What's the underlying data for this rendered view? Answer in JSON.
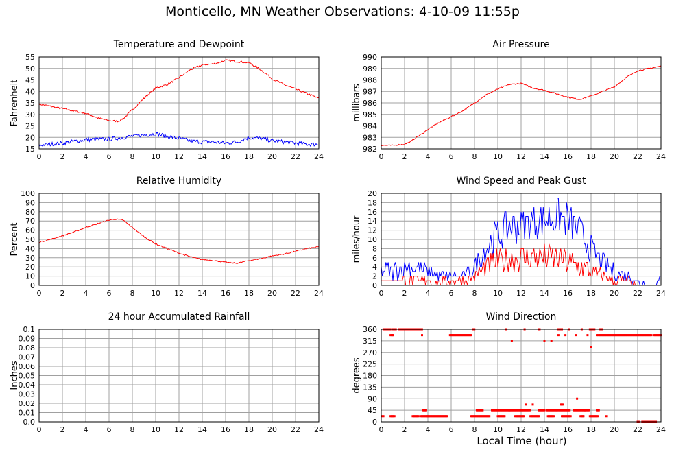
{
  "page": {
    "title": "Monticello, MN Weather Observations: 4-10-09 11:55p",
    "x_axis_label": "Local Time (hour)"
  },
  "colors": {
    "red": "#ff0000",
    "blue": "#0000ff",
    "grid": "#a0a0a0",
    "frame": "#000000"
  },
  "chart_data": [
    {
      "id": "temperature",
      "type": "line",
      "title": "Temperature and Dewpoint",
      "xlabel": "",
      "ylabel": "Fahrenheit",
      "xlim": [
        0,
        24
      ],
      "ylim": [
        15,
        55
      ],
      "xticks": [
        "0",
        "2",
        "4",
        "6",
        "8",
        "10",
        "12",
        "14",
        "16",
        "18",
        "20",
        "22",
        "24"
      ],
      "yticks": [
        "15",
        "20",
        "25",
        "30",
        "35",
        "40",
        "45",
        "50",
        "55"
      ],
      "grid": true,
      "series": [
        {
          "color": "red",
          "noise": 0.4,
          "x": [
            0,
            2,
            4,
            5,
            6,
            6.8,
            7.3,
            8,
            9,
            10,
            11,
            12,
            13,
            14,
            15,
            16,
            17,
            18,
            19,
            20,
            21,
            22,
            23,
            24
          ],
          "y": [
            34.5,
            32.5,
            30.5,
            28.5,
            27.3,
            27,
            28.5,
            32,
            37,
            41.5,
            43,
            46,
            49.5,
            51.5,
            52,
            53.5,
            53,
            52.5,
            49.5,
            45.5,
            43,
            41,
            39,
            37
          ]
        },
        {
          "color": "blue",
          "noise": 0.9,
          "x": [
            0,
            2,
            4,
            6,
            8,
            9,
            10,
            11,
            12,
            13,
            14,
            15,
            16,
            17,
            18,
            19,
            20,
            21,
            22,
            23,
            24
          ],
          "y": [
            16.5,
            17.5,
            19,
            19.2,
            20.5,
            21,
            21.5,
            20.5,
            19.5,
            18.5,
            18,
            18,
            17.5,
            18,
            20,
            19.5,
            18.5,
            18,
            17.5,
            17,
            17
          ]
        }
      ]
    },
    {
      "id": "pressure",
      "type": "line",
      "title": "Air Pressure",
      "xlabel": "",
      "ylabel": "millibars",
      "xlim": [
        0,
        24
      ],
      "ylim": [
        982,
        990
      ],
      "xticks": [
        "0",
        "2",
        "4",
        "6",
        "8",
        "10",
        "12",
        "14",
        "16",
        "18",
        "20",
        "22",
        "24"
      ],
      "yticks": [
        "982",
        "983",
        "984",
        "985",
        "986",
        "987",
        "988",
        "989",
        "990"
      ],
      "grid": true,
      "series": [
        {
          "color": "red",
          "noise": 0.05,
          "x": [
            0,
            1,
            2,
            2.5,
            3,
            3.5,
            4,
            5,
            6,
            7,
            8,
            9,
            10,
            11,
            12,
            13,
            14,
            15,
            16,
            17,
            18,
            19,
            20,
            21,
            22,
            23,
            24
          ],
          "y": [
            982.3,
            982.3,
            982.4,
            982.6,
            983.0,
            983.3,
            983.7,
            984.3,
            984.8,
            985.3,
            986.0,
            986.7,
            987.2,
            987.6,
            987.7,
            987.3,
            987.1,
            986.8,
            986.5,
            986.3,
            986.6,
            987.0,
            987.4,
            988.2,
            988.8,
            989.0,
            989.2
          ]
        }
      ]
    },
    {
      "id": "humidity",
      "type": "line",
      "title": "Relative Humidity",
      "xlabel": "",
      "ylabel": "Percent",
      "xlim": [
        0,
        24
      ],
      "ylim": [
        0,
        100
      ],
      "xticks": [
        "0",
        "2",
        "4",
        "6",
        "8",
        "10",
        "12",
        "14",
        "16",
        "18",
        "20",
        "22",
        "24"
      ],
      "yticks": [
        "0",
        "10",
        "20",
        "30",
        "40",
        "50",
        "60",
        "70",
        "80",
        "90",
        "100"
      ],
      "grid": true,
      "series": [
        {
          "color": "red",
          "noise": 0.6,
          "x": [
            0,
            1,
            2,
            3,
            4,
            5,
            6,
            6.5,
            7.2,
            8,
            9,
            10,
            11,
            12,
            13,
            14,
            15,
            16,
            17,
            18,
            19,
            20,
            21,
            22,
            23,
            24
          ],
          "y": [
            47,
            50,
            54,
            58,
            63,
            67,
            71,
            72,
            71,
            63,
            53,
            45,
            40,
            35,
            31,
            28,
            27,
            25,
            24,
            27,
            29,
            32,
            34,
            37,
            40,
            42
          ]
        }
      ]
    },
    {
      "id": "wind",
      "type": "line",
      "title": "Wind Speed and Peak Gust",
      "xlabel": "",
      "ylabel": "miles/hour",
      "xlim": [
        0,
        24
      ],
      "ylim": [
        0,
        20
      ],
      "xticks": [
        "0",
        "2",
        "4",
        "6",
        "8",
        "10",
        "12",
        "14",
        "16",
        "18",
        "20",
        "22",
        "24"
      ],
      "yticks": [
        "0",
        "2",
        "4",
        "6",
        "8",
        "10",
        "12",
        "14",
        "16",
        "18",
        "20"
      ],
      "grid": true,
      "series": [
        {
          "color": "blue",
          "step": 0.1,
          "maxv": 20,
          "x": [
            0,
            1,
            2,
            3,
            4,
            5,
            6,
            7,
            8,
            9,
            10,
            11,
            12,
            13,
            14,
            15,
            16,
            17,
            18,
            19,
            20,
            21,
            22,
            23,
            24
          ],
          "y": [
            3,
            3,
            4,
            4,
            3,
            2,
            2,
            2,
            4,
            8,
            11,
            13,
            13,
            14,
            14,
            15,
            14,
            12,
            8,
            5,
            3,
            2,
            1,
            0,
            1
          ],
          "amp": [
            2,
            2,
            2,
            2,
            1.5,
            1,
            1,
            1,
            2,
            3,
            4,
            4,
            4,
            4,
            4,
            4,
            4,
            3,
            3,
            2,
            2,
            1.5,
            1,
            1,
            1.5
          ]
        },
        {
          "color": "red",
          "step": 0.1,
          "maxv": 20,
          "x": [
            0,
            1,
            2,
            3,
            4,
            5,
            6,
            7,
            8,
            9,
            10,
            11,
            12,
            13,
            14,
            15,
            16,
            17,
            18,
            19,
            20,
            21,
            22,
            23,
            24
          ],
          "y": [
            1,
            1,
            1,
            1,
            1,
            0.5,
            1,
            1,
            2,
            4,
            5,
            6,
            6,
            6,
            6,
            6,
            5,
            4,
            3,
            2,
            1,
            1,
            0,
            0,
            0
          ],
          "amp": [
            0.5,
            0.5,
            1,
            1,
            1,
            1,
            1,
            1,
            1.5,
            2,
            3,
            3,
            3,
            3,
            3,
            3,
            3,
            2.5,
            2,
            1.5,
            1,
            1,
            0.5,
            0.5,
            0.5
          ]
        }
      ]
    },
    {
      "id": "rainfall",
      "type": "line",
      "title": "24 hour Accumulated Rainfall",
      "xlabel": "",
      "ylabel": "Inches",
      "xlim": [
        0,
        24
      ],
      "ylim": [
        0,
        0.1
      ],
      "xticks": [
        "0",
        "2",
        "4",
        "6",
        "8",
        "10",
        "12",
        "14",
        "16",
        "18",
        "20",
        "22",
        "24"
      ],
      "yticks": [
        "0.0",
        "0.01",
        "0.02",
        "0.03",
        "0.04",
        "0.05",
        "0.06",
        "0.07",
        "0.08",
        "0.09",
        "0.1"
      ],
      "grid": true,
      "series": [
        {
          "color": "red",
          "noise": 0,
          "x": [
            0,
            24
          ],
          "y": [
            0,
            0
          ]
        }
      ]
    },
    {
      "id": "direction",
      "type": "scatter",
      "title": "Wind Direction",
      "xlabel": "Local Time (hour)",
      "ylabel": "degrees",
      "xlim": [
        0,
        24
      ],
      "ylim": [
        0,
        360
      ],
      "xticks": [
        "0",
        "2",
        "4",
        "6",
        "8",
        "10",
        "12",
        "14",
        "16",
        "18",
        "20",
        "22",
        "24"
      ],
      "yticks": [
        "0",
        "45",
        "90",
        "135",
        "180",
        "225",
        "270",
        "315",
        "360"
      ],
      "grid": true,
      "series": [
        {
          "color": "red",
          "segments": [
            [
              0.2,
              0.8,
              360
            ],
            [
              0.8,
              1.0,
              337
            ],
            [
              1.0,
              1.3,
              360
            ],
            [
              1.5,
              3.5,
              360
            ],
            [
              1.0,
              1.0,
              337
            ],
            [
              3.5,
              3.5,
              337
            ],
            [
              5.9,
              7.8,
              337
            ],
            [
              7.9,
              8.0,
              360
            ],
            [
              10.7,
              10.7,
              360
            ],
            [
              12.3,
              12.3,
              360
            ],
            [
              13.5,
              13.6,
              360
            ],
            [
              14.0,
              14.0,
              315
            ],
            [
              11.2,
              11.2,
              315
            ],
            [
              14.6,
              14.6,
              315
            ],
            [
              15.2,
              15.2,
              337
            ],
            [
              15.8,
              15.8,
              337
            ],
            [
              15.2,
              15.5,
              360
            ],
            [
              15.5,
              15.5,
              360
            ],
            [
              16.1,
              16.1,
              360
            ],
            [
              17.2,
              17.2,
              360
            ],
            [
              17.7,
              17.7,
              337
            ],
            [
              17.9,
              18.1,
              360
            ],
            [
              18.2,
              18.3,
              360
            ],
            [
              18.5,
              18.6,
              337
            ],
            [
              18.7,
              23.2,
              337
            ],
            [
              23.4,
              24,
              337
            ],
            [
              18.0,
              18.0,
              292
            ],
            [
              18.8,
              19.0,
              360
            ],
            [
              16.7,
              16.7,
              337
            ],
            [
              0.1,
              0.2,
              22
            ],
            [
              0.8,
              1.2,
              22
            ],
            [
              2.7,
              3.2,
              22
            ],
            [
              3.4,
              4.0,
              22
            ],
            [
              3.6,
              3.9,
              45
            ],
            [
              4.0,
              5.7,
              22
            ],
            [
              7.7,
              9.3,
              22
            ],
            [
              8.2,
              8.7,
              45
            ],
            [
              9.5,
              11.0,
              45
            ],
            [
              10.0,
              10.6,
              22
            ],
            [
              11.0,
              12.8,
              45
            ],
            [
              11.5,
              12.3,
              22
            ],
            [
              12.4,
              12.4,
              67
            ],
            [
              13.0,
              13.0,
              67
            ],
            [
              12.8,
              13.6,
              22
            ],
            [
              13.5,
              14.0,
              45
            ],
            [
              14.2,
              15.0,
              45
            ],
            [
              14.3,
              14.8,
              22
            ],
            [
              15.4,
              15.6,
              67
            ],
            [
              15.0,
              16.2,
              45
            ],
            [
              15.5,
              16.3,
              22
            ],
            [
              16.5,
              17.5,
              45
            ],
            [
              16.8,
              16.8,
              90
            ],
            [
              17.1,
              17.4,
              22
            ],
            [
              17.5,
              17.9,
              45
            ],
            [
              17.9,
              18.6,
              22
            ],
            [
              18.5,
              18.7,
              45
            ],
            [
              19.3,
              19.3,
              22
            ],
            [
              22.0,
              22.1,
              0
            ],
            [
              22.4,
              23.6,
              0
            ]
          ]
        }
      ]
    }
  ]
}
